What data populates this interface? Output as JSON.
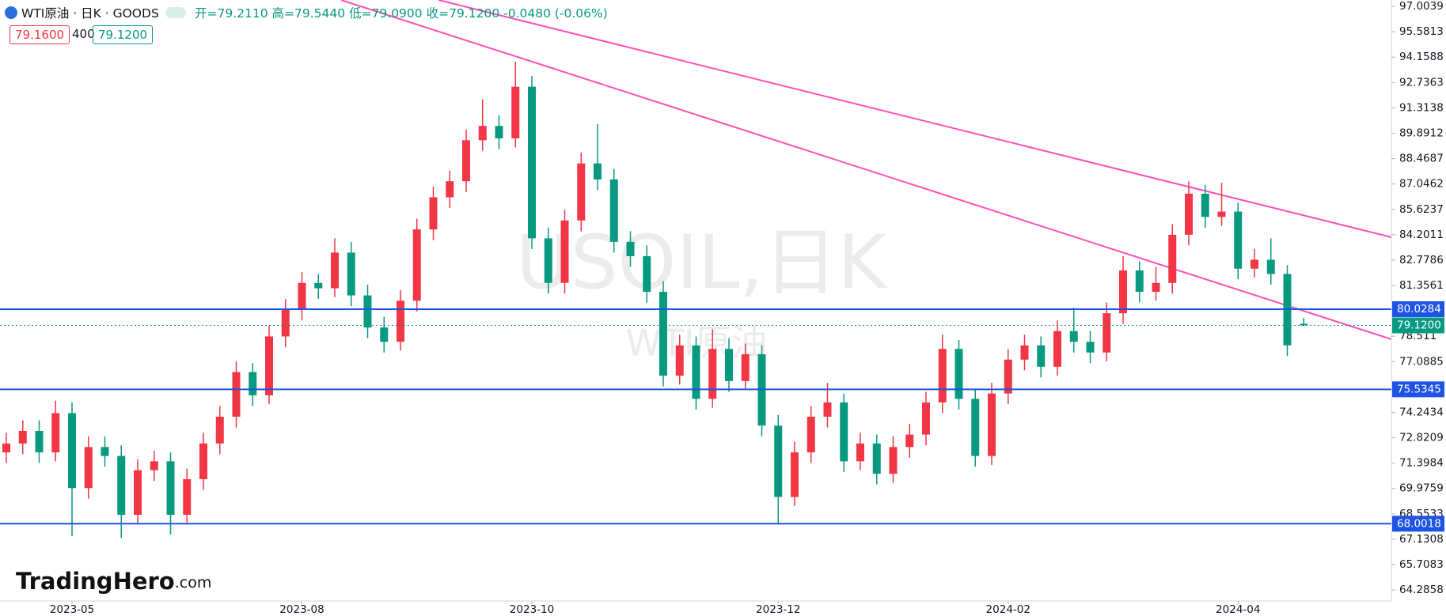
{
  "header": {
    "symbol": "WTI原油 · 日K · GOODS",
    "open": "开=79.2110",
    "high": "高=79.5440",
    "low": "低=79.0900",
    "close": "收=79.1200",
    "change": "-0.0480 (-0.06%)",
    "sell": "79.1600",
    "spread": "400",
    "buy": "79.1200"
  },
  "watermark": {
    "main": "USOIL,日K",
    "sub": "WTI原油"
  },
  "logo": {
    "name": "TradingHero",
    "suffix": ".com"
  },
  "chart_data": {
    "type": "candlestick",
    "categories": [
      null,
      null,
      null,
      null,
      "2023-05",
      null,
      null,
      null,
      null,
      null,
      null,
      null,
      null,
      null,
      null,
      null,
      null,
      null,
      "2023-08",
      null,
      null,
      null,
      null,
      null,
      null,
      null,
      null,
      null,
      null,
      null,
      null,
      null,
      "2023-10",
      null,
      null,
      null,
      null,
      null,
      null,
      null,
      null,
      null,
      null,
      null,
      null,
      null,
      null,
      "2023-12",
      null,
      null,
      null,
      null,
      null,
      null,
      null,
      null,
      null,
      null,
      null,
      null,
      null,
      "2024-02",
      null,
      null,
      null,
      null,
      null,
      null,
      null,
      null,
      null,
      null,
      null,
      null,
      null,
      "2024-04",
      null,
      null,
      null,
      null
    ],
    "up_color": "#f23645",
    "down_color": "#089981",
    "open": [
      72.0,
      72.5,
      73.2,
      72.0,
      74.2,
      70.0,
      72.3,
      71.8,
      68.5,
      71.0,
      71.5,
      68.5,
      70.5,
      72.5,
      74.0,
      76.5,
      75.2,
      78.5,
      80.0,
      81.5,
      81.2,
      83.2,
      80.8,
      79.0,
      78.2,
      80.5,
      84.5,
      86.3,
      87.2,
      89.5,
      90.3,
      89.6,
      92.5,
      84.0,
      81.5,
      85.0,
      88.2,
      87.3,
      83.8,
      83.0,
      81.0,
      76.3,
      78.0,
      75.0,
      77.8,
      76.0,
      77.5,
      73.5,
      69.5,
      72.0,
      74.0,
      74.8,
      71.5,
      72.5,
      70.8,
      72.3,
      73.0,
      74.8,
      77.8,
      75.0,
      71.8,
      75.3,
      77.2,
      78.0,
      76.8,
      78.8,
      78.2,
      77.6,
      79.8,
      82.2,
      81.0,
      81.5,
      84.2,
      86.5,
      85.2,
      85.5,
      82.3,
      82.8,
      82.0,
      79.211
    ],
    "high": [
      73.1,
      73.8,
      73.8,
      74.9,
      74.8,
      72.9,
      72.9,
      72.4,
      71.6,
      72.1,
      72.0,
      71.1,
      73.1,
      74.6,
      77.1,
      77.0,
      79.1,
      80.6,
      82.1,
      82.0,
      84.0,
      83.8,
      81.4,
      79.6,
      81.1,
      85.1,
      86.9,
      87.8,
      90.1,
      91.8,
      90.9,
      93.9,
      93.1,
      84.6,
      85.6,
      88.8,
      90.4,
      87.9,
      84.4,
      83.6,
      81.6,
      78.6,
      78.5,
      78.9,
      78.4,
      78.1,
      78.0,
      74.1,
      72.6,
      74.6,
      75.9,
      75.3,
      73.1,
      73.0,
      72.9,
      73.6,
      75.4,
      78.6,
      78.3,
      75.5,
      75.9,
      77.8,
      78.6,
      78.5,
      79.4,
      80.1,
      78.8,
      80.4,
      83.0,
      82.7,
      82.4,
      84.8,
      87.2,
      87.0,
      87.1,
      86.0,
      83.4,
      84.0,
      82.5,
      79.544
    ],
    "low": [
      71.4,
      71.9,
      71.4,
      71.5,
      67.3,
      69.4,
      71.2,
      67.2,
      68.0,
      70.4,
      67.4,
      68.0,
      69.9,
      71.9,
      73.4,
      74.6,
      74.7,
      77.9,
      79.4,
      80.6,
      80.7,
      80.2,
      78.4,
      77.6,
      77.7,
      79.9,
      83.9,
      85.7,
      86.6,
      88.9,
      89.0,
      89.1,
      83.4,
      80.9,
      80.9,
      84.4,
      86.7,
      83.2,
      82.4,
      80.4,
      75.7,
      75.8,
      74.4,
      74.5,
      75.4,
      75.5,
      72.9,
      68.0,
      69.0,
      71.4,
      73.4,
      70.9,
      71.0,
      70.2,
      70.3,
      71.7,
      72.4,
      74.2,
      74.4,
      71.2,
      71.3,
      74.7,
      76.6,
      76.2,
      76.3,
      77.6,
      77.0,
      77.1,
      79.2,
      80.4,
      80.5,
      80.9,
      83.6,
      84.6,
      84.7,
      81.7,
      81.8,
      81.4,
      77.4,
      79.09
    ],
    "close": [
      72.5,
      73.2,
      72.0,
      74.2,
      70.0,
      72.3,
      71.8,
      68.5,
      71.0,
      71.5,
      68.5,
      70.5,
      72.5,
      74.0,
      76.5,
      75.2,
      78.5,
      80.0,
      81.5,
      81.2,
      83.2,
      80.8,
      79.0,
      78.2,
      80.5,
      84.5,
      86.3,
      87.2,
      89.5,
      90.3,
      89.6,
      92.5,
      84.0,
      81.5,
      85.0,
      88.2,
      87.3,
      83.8,
      83.0,
      81.0,
      76.3,
      78.0,
      75.0,
      77.8,
      76.0,
      77.5,
      73.5,
      69.5,
      72.0,
      74.0,
      74.8,
      71.5,
      72.5,
      70.8,
      72.3,
      73.0,
      74.8,
      77.8,
      75.0,
      71.8,
      75.3,
      77.2,
      78.0,
      76.8,
      78.8,
      78.2,
      77.6,
      79.8,
      82.2,
      81.0,
      81.5,
      84.2,
      86.5,
      85.2,
      85.5,
      82.3,
      82.8,
      82.0,
      78.0,
      79.12
    ],
    "ylim": [
      63.67,
      97.36
    ],
    "yticks": [
      97.0039,
      95.5813,
      94.1588,
      92.7363,
      91.3138,
      89.8912,
      88.4687,
      87.0462,
      85.6237,
      84.2011,
      82.7786,
      81.3561,
      78.511,
      77.0885,
      74.2434,
      72.8209,
      71.3984,
      69.9759,
      68.5533,
      67.1308,
      65.7083,
      64.2858
    ],
    "levels": [
      80.0284,
      75.5345,
      68.0018
    ],
    "level_color": "#1e53e5",
    "last_price": {
      "value": 79.12,
      "label": "79.1200"
    },
    "last_color": "#089981"
  }
}
